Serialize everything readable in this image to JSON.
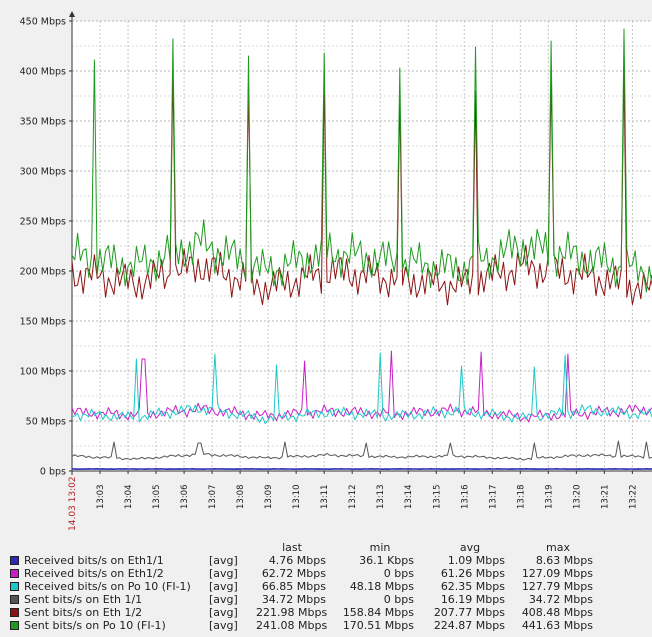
{
  "chart_data": {
    "type": "line",
    "y_ticks": [
      "0 bps",
      "50 Mbps",
      "100 Mbps",
      "150 Mbps",
      "200 Mbps",
      "250 Mbps",
      "300 Mbps",
      "350 Mbps",
      "400 Mbps",
      "450 Mbps"
    ],
    "ylim": [
      0,
      450
    ],
    "y_unit": "Mbps",
    "x_start_label": "14.03 13:02",
    "x_ticks": [
      "13:03",
      "13:04",
      "13:05",
      "13:06",
      "13:07",
      "13:08",
      "13:09",
      "13:10",
      "13:11",
      "13:12",
      "13:13",
      "13:14",
      "13:15",
      "13:16",
      "13:17",
      "13:18",
      "13:19",
      "13:20",
      "13:21",
      "13:22"
    ],
    "x_range_minutes": [
      0,
      20.7
    ],
    "grid": true,
    "series": [
      {
        "name": "Received bits/s on Eth1/1",
        "color": "#2b2bb3",
        "peaks": [],
        "base_values": [
          2,
          2,
          2,
          2,
          2,
          2,
          2,
          2,
          2,
          2
        ]
      },
      {
        "name": "Received bits/s on Eth1/2",
        "color": "#c71fc7",
        "peaks": [
          [
            2.5,
            112
          ],
          [
            2.6,
            112
          ],
          [
            8.25,
            110
          ],
          [
            11.4,
            120
          ],
          [
            14.55,
            119
          ],
          [
            17.7,
            117
          ]
        ],
        "base_values": [
          59,
          56,
          62,
          55,
          60,
          57,
          61,
          54,
          58,
          62
        ]
      },
      {
        "name": "Received bits/s on Po 10 (FI-1)",
        "color": "#1ec8c8",
        "peaks": [
          [
            2.35,
            112
          ],
          [
            5.05,
            117
          ],
          [
            7.25,
            106
          ],
          [
            10.95,
            118
          ],
          [
            13.85,
            105
          ],
          [
            16.45,
            104
          ],
          [
            17.55,
            116
          ]
        ],
        "base_values": [
          57,
          54,
          63,
          52,
          59,
          55,
          60,
          53,
          61,
          56
        ]
      },
      {
        "name": "Sent bits/s on Eth 1/1",
        "color": "#555555",
        "peaks": [
          [
            1.55,
            29
          ],
          [
            4.55,
            28
          ],
          [
            7.55,
            29
          ],
          [
            10.5,
            28
          ],
          [
            13.5,
            28
          ],
          [
            16.5,
            28
          ],
          [
            19.5,
            30
          ],
          [
            20.55,
            29
          ]
        ],
        "base_values": [
          15,
          12,
          17,
          13,
          16,
          14,
          15,
          12,
          16,
          14
        ]
      },
      {
        "name": "Sent bits/s on Eth 1/2",
        "color": "#8b1313",
        "peaks": [
          [
            3.6,
            400
          ],
          [
            6.3,
            388
          ],
          [
            9.0,
            392
          ],
          [
            11.7,
            375
          ],
          [
            14.35,
            380
          ],
          [
            17.05,
            393
          ],
          [
            19.75,
            400
          ]
        ],
        "base_values": [
          198,
          188,
          206,
          183,
          200,
          192,
          186,
          205,
          195,
          180
        ]
      },
      {
        "name": "Sent bits/s on Po 10 (FI-1)",
        "color": "#1e9a1e",
        "peaks": [
          [
            0.8,
            411
          ],
          [
            3.6,
            432
          ],
          [
            6.3,
            415
          ],
          [
            9.0,
            418
          ],
          [
            11.7,
            403
          ],
          [
            14.35,
            424
          ],
          [
            17.05,
            430
          ],
          [
            19.75,
            442
          ]
        ],
        "base_values": [
          215,
          205,
          228,
          200,
          219,
          210,
          202,
          225,
          212,
          198
        ]
      }
    ]
  },
  "legend": {
    "headers": {
      "last": "last",
      "min": "min",
      "avg": "avg",
      "max": "max"
    },
    "rows": [
      {
        "name": "Received bits/s on Eth1/1",
        "func": "[avg]",
        "last": "4.76 Mbps",
        "min": "36.1 Kbps",
        "avg": "1.09 Mbps",
        "max": "8.63 Mbps",
        "color": "#2b2bb3"
      },
      {
        "name": "Received bits/s on Eth1/2",
        "func": "[avg]",
        "last": "62.72 Mbps",
        "min": "0 bps",
        "avg": "61.26 Mbps",
        "max": "127.09 Mbps",
        "color": "#c71fc7"
      },
      {
        "name": "Received bits/s on Po 10 (FI-1)",
        "func": "[avg]",
        "last": "66.85 Mbps",
        "min": "48.18 Mbps",
        "avg": "62.35 Mbps",
        "max": "127.79 Mbps",
        "color": "#1ec8c8"
      },
      {
        "name": "Sent bits/s on Eth 1/1",
        "func": "[avg]",
        "last": "34.72 Mbps",
        "min": "0 bps",
        "avg": "16.19 Mbps",
        "max": "34.72 Mbps",
        "color": "#555555"
      },
      {
        "name": "Sent bits/s on Eth 1/2",
        "func": "[avg]",
        "last": "221.98 Mbps",
        "min": "158.84 Mbps",
        "avg": "207.77 Mbps",
        "max": "408.48 Mbps",
        "color": "#8b1313"
      },
      {
        "name": "Sent bits/s on Po 10 (FI-1)",
        "func": "[avg]",
        "last": "241.08 Mbps",
        "min": "170.51 Mbps",
        "avg": "224.87 Mbps",
        "max": "441.63 Mbps",
        "color": "#1e9a1e"
      }
    ]
  }
}
